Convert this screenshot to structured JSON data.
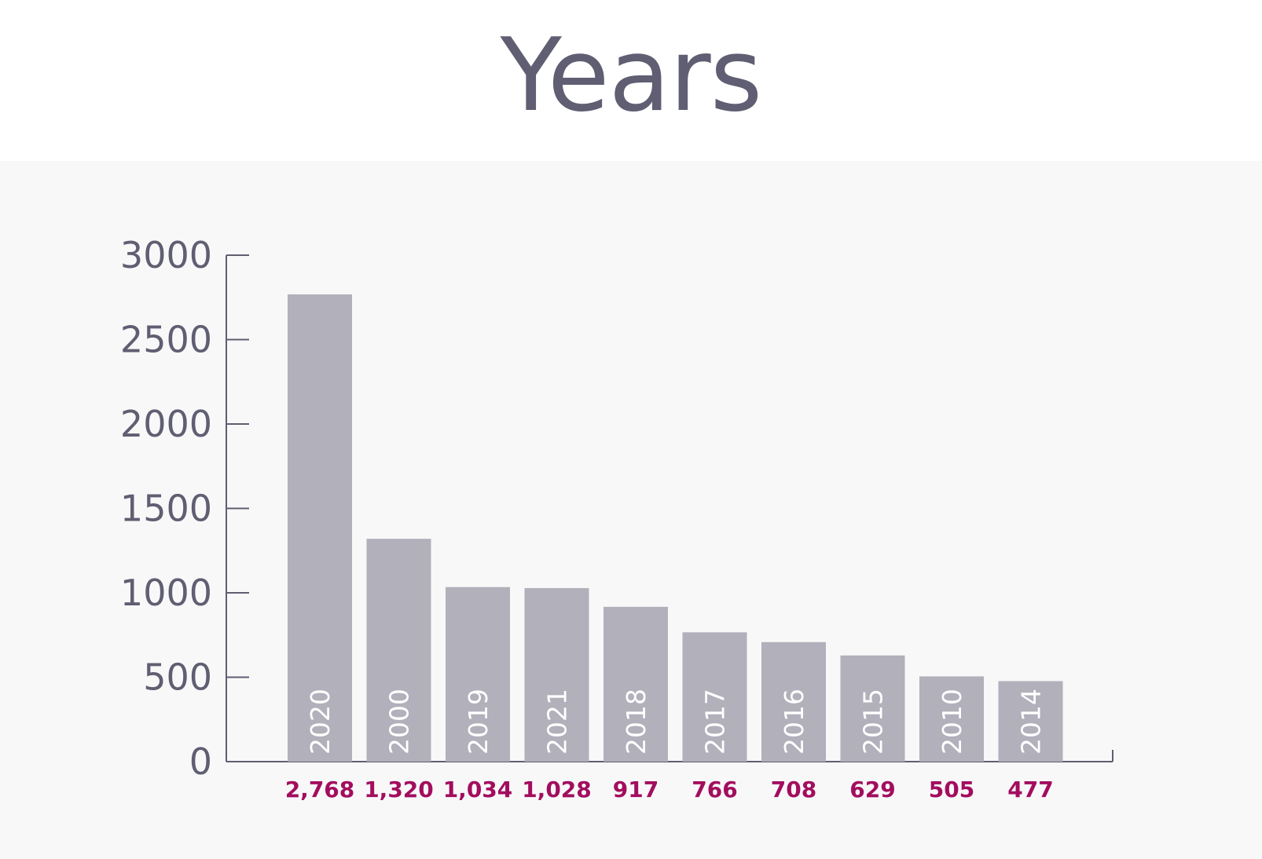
{
  "chart_data": {
    "type": "bar",
    "title": "Years",
    "categories": [
      "2020",
      "2000",
      "2019",
      "2021",
      "2018",
      "2017",
      "2016",
      "2015",
      "2010",
      "2014"
    ],
    "values": [
      2768,
      1320,
      1034,
      1028,
      917,
      766,
      708,
      629,
      505,
      477
    ],
    "value_labels": [
      "2,768",
      "1,320",
      "1,034",
      "1,028",
      "917",
      "766",
      "708",
      "629",
      "505",
      "477"
    ],
    "yticks": [
      0,
      500,
      1000,
      1500,
      2000,
      2500,
      3000
    ],
    "ylim": [
      0,
      3000
    ],
    "xlabel": "",
    "ylabel": "",
    "grid": false,
    "legend": "none",
    "colors": {
      "bar": "#b1b0bb",
      "axis": "#5f5e72",
      "value_label": "#a30d5e",
      "category_label": "#ffffff",
      "panel_background": "#f8f8f8"
    }
  }
}
